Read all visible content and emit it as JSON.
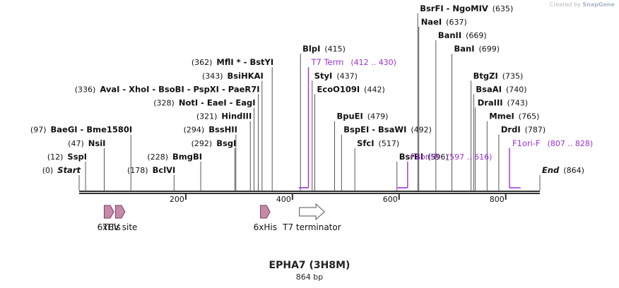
{
  "credit": {
    "prefix": "Created by",
    "brand": "SnapGene"
  },
  "title": "EPHA7 (3H8M)",
  "length_label": "864 bp",
  "axis": {
    "min": 0,
    "max": 864,
    "ticks": [
      {
        "value": 200,
        "label": "200"
      },
      {
        "value": 400,
        "label": "400"
      },
      {
        "value": 600,
        "label": "600"
      },
      {
        "value": 800,
        "label": "800"
      }
    ]
  },
  "sites": [
    {
      "pos": "(0)",
      "names": [
        "Start"
      ],
      "anchor": 0,
      "row": 0,
      "italic": true
    },
    {
      "pos": "(12)",
      "names": [
        "SspI"
      ],
      "anchor": 12,
      "row": 1
    },
    {
      "pos": "(47)",
      "names": [
        "NsiI"
      ],
      "anchor": 47,
      "row": 2
    },
    {
      "pos": "(97)",
      "names": [
        "BaeGI",
        "Bme1580I"
      ],
      "anchor": 97,
      "row": 3
    },
    {
      "pos": "(178)",
      "names": [
        "BclVI"
      ],
      "anchor": 178,
      "row": 0
    },
    {
      "pos": "(228)",
      "names": [
        "BmgBI"
      ],
      "anchor": 228,
      "row": 1
    },
    {
      "pos": "(292)",
      "names": [
        "BsgI"
      ],
      "anchor": 292,
      "row": 2
    },
    {
      "pos": "(294)",
      "names": [
        "BssHII"
      ],
      "anchor": 294,
      "row": 3
    },
    {
      "pos": "(321)",
      "names": [
        "HindIII"
      ],
      "anchor": 321,
      "row": 4
    },
    {
      "pos": "(328)",
      "names": [
        "NotI",
        "EaeI",
        "EagI"
      ],
      "anchor": 328,
      "row": 5
    },
    {
      "pos": "(336)",
      "names": [
        "AvaI",
        "XhoI",
        "BsoBI",
        "PspXI",
        "PaeR7I"
      ],
      "anchor": 336,
      "row": 6
    },
    {
      "pos": "(343)",
      "names": [
        "BsiHKAI"
      ],
      "anchor": 343,
      "row": 7
    },
    {
      "pos": "(362)",
      "names": [
        "MflI *",
        "BstYI"
      ],
      "anchor": 362,
      "row": 8
    },
    {
      "pos": "(415)",
      "names": [
        "BlpI"
      ],
      "anchor": 415,
      "row": 9,
      "side": "right"
    },
    {
      "pos": "(437)",
      "names": [
        "StyI"
      ],
      "anchor": 437,
      "row": 7,
      "side": "right"
    },
    {
      "pos": "(442)",
      "names": [
        "EcoO109I"
      ],
      "anchor": 442,
      "row": 6,
      "side": "right"
    },
    {
      "pos": "(479)",
      "names": [
        "BpuEI"
      ],
      "anchor": 479,
      "row": 4,
      "side": "right"
    },
    {
      "pos": "(492)",
      "names": [
        "BspEI",
        "BsaWI"
      ],
      "anchor": 492,
      "row": 3,
      "side": "right"
    },
    {
      "pos": "(517)",
      "names": [
        "SfcI"
      ],
      "anchor": 517,
      "row": 2,
      "side": "right"
    },
    {
      "pos": "(596)",
      "names": [
        "BsrBI"
      ],
      "anchor": 596,
      "row": 1,
      "side": "right"
    },
    {
      "pos": "(635)",
      "names": [
        "BsrFI",
        "NgoMIV"
      ],
      "anchor": 635,
      "row": 12,
      "side": "right"
    },
    {
      "pos": "(637)",
      "names": [
        "NaeI"
      ],
      "anchor": 637,
      "row": 11,
      "side": "right"
    },
    {
      "pos": "(669)",
      "names": [
        "BanII"
      ],
      "anchor": 669,
      "row": 10,
      "side": "right"
    },
    {
      "pos": "(699)",
      "names": [
        "BanI"
      ],
      "anchor": 699,
      "row": 9,
      "side": "right"
    },
    {
      "pos": "(735)",
      "names": [
        "BtgZI"
      ],
      "anchor": 735,
      "row": 7,
      "side": "right"
    },
    {
      "pos": "(740)",
      "names": [
        "BsaAI"
      ],
      "anchor": 740,
      "row": 6,
      "side": "right"
    },
    {
      "pos": "(743)",
      "names": [
        "DraIII"
      ],
      "anchor": 743,
      "row": 5,
      "side": "right"
    },
    {
      "pos": "(765)",
      "names": [
        "MmeI"
      ],
      "anchor": 765,
      "row": 4,
      "side": "right"
    },
    {
      "pos": "(787)",
      "names": [
        "DrdI"
      ],
      "anchor": 787,
      "row": 3,
      "side": "right"
    },
    {
      "pos": "(864)",
      "names": [
        "End"
      ],
      "anchor": 864,
      "row": 0,
      "side": "right",
      "italic": true
    }
  ],
  "primers": [
    {
      "name": "T7 Term",
      "range": "(412 .. 430)",
      "start": 412,
      "end": 430,
      "row": 8,
      "strand": "reverse"
    },
    {
      "name": "F1ori-R",
      "range": "(597 .. 616)",
      "start": 597,
      "end": 616,
      "row": 1,
      "strand": "reverse"
    },
    {
      "name": "F1ori-F",
      "range": "(807 .. 828)",
      "start": 807,
      "end": 828,
      "row": 2,
      "strand": "forward"
    }
  ],
  "features": [
    {
      "name": "6xHis",
      "start": 47,
      "end": 65,
      "type": "tag"
    },
    {
      "name": "TEV site",
      "start": 68,
      "end": 86,
      "type": "tag"
    },
    {
      "name": "6xHis",
      "start": 340,
      "end": 358,
      "type": "tag"
    },
    {
      "name": "T7 terminator",
      "start": 413,
      "end": 460,
      "type": "terminator"
    }
  ],
  "colors": {
    "line": "#333333",
    "primer": "#9b30d9",
    "tag_fill": "#c48aa8",
    "tag_stroke": "#7a3f60",
    "terminator_fill": "#ffffff",
    "terminator_stroke": "#555555",
    "text": "#111111"
  }
}
